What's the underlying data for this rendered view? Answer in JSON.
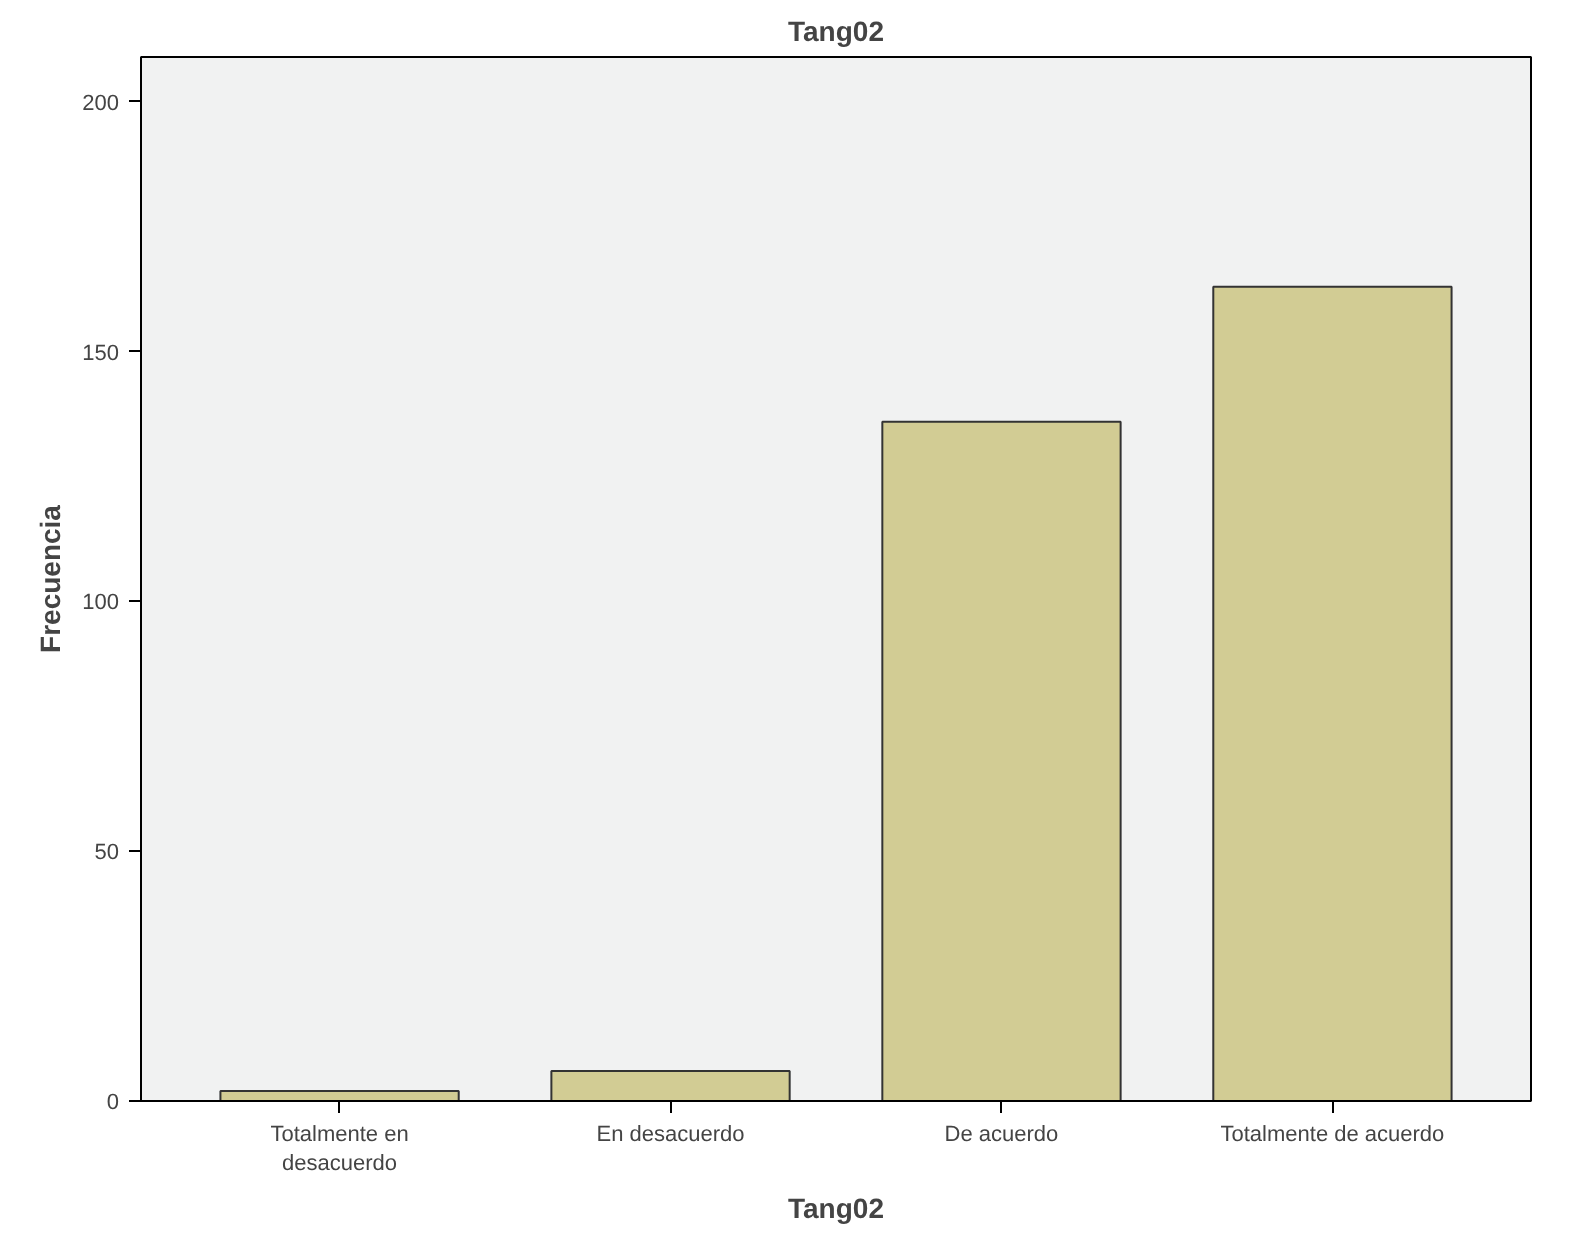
{
  "chart_data": {
    "type": "bar",
    "title": "Tang02",
    "xlabel": "Tang02",
    "ylabel": "Frecuencia",
    "categories": [
      "Totalmente en\ndesacuerdo",
      "En desacuerdo",
      "De acuerdo",
      "Totalmente de acuerdo"
    ],
    "values": [
      2,
      6,
      136,
      163
    ],
    "color": "#d2cc94",
    "ylim": [
      0,
      209
    ],
    "yticks": [
      0,
      50,
      100,
      150,
      200
    ],
    "grid": false
  }
}
